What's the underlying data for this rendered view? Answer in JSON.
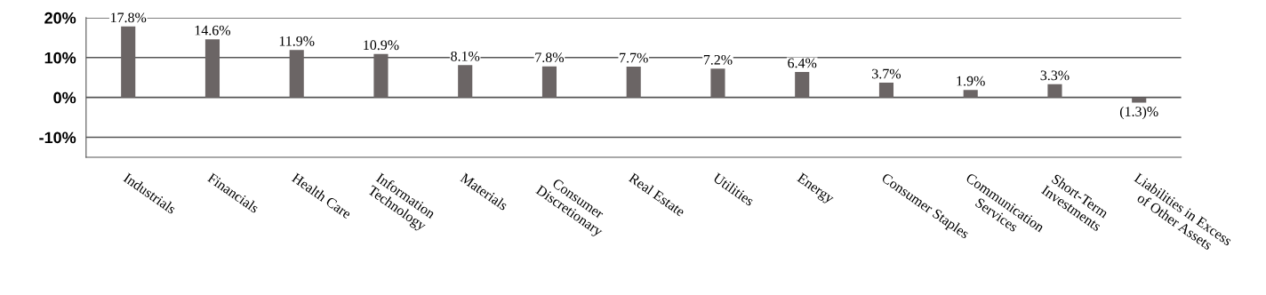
{
  "chart_data": {
    "type": "bar",
    "categories": [
      "Industrials",
      "Financials",
      "Health Care",
      "Information\nTechnology",
      "Materials",
      "Consumer\nDiscretionary",
      "Real Estate",
      "Utilities",
      "Energy",
      "Consumer Staples",
      "Communication\nServices",
      "Short-Term\nInvestments",
      "Liabilities in Excess\nof Other Assets"
    ],
    "values": [
      17.8,
      14.6,
      11.9,
      10.9,
      8.1,
      7.8,
      7.7,
      7.2,
      6.4,
      3.7,
      1.9,
      3.3,
      -1.3
    ],
    "value_labels": [
      "17.8%",
      "14.6%",
      "11.9%",
      "10.9%",
      "8.1%",
      "7.8%",
      "7.7%",
      "7.2%",
      "6.4%",
      "3.7%",
      "1.9%",
      "3.3%",
      "(1.3)%"
    ],
    "color": "#6b6565",
    "ylim": [
      -15,
      20
    ],
    "yticks": [
      {
        "value": 20,
        "label": "20%"
      },
      {
        "value": 10,
        "label": "10%"
      },
      {
        "value": 0,
        "label": "0%"
      },
      {
        "value": -10,
        "label": "-10%"
      }
    ],
    "grid": "y"
  }
}
